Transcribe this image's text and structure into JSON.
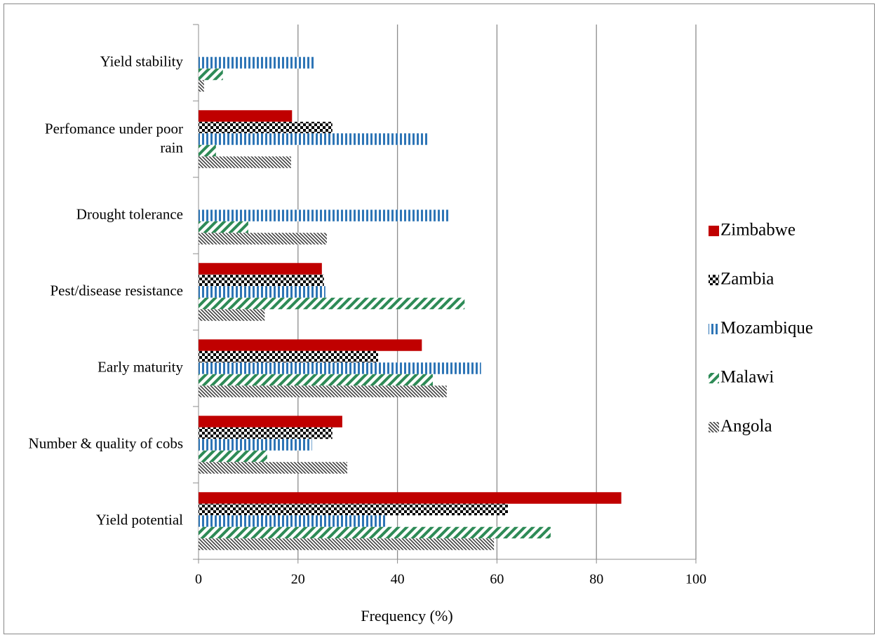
{
  "chart_data": {
    "type": "hbar",
    "x_label": "Frequency (%)",
    "categories": [
      "Yield stability",
      "Perfomance under poor rain",
      "Drought tolerance",
      "Pest/disease resistance",
      "Early maturity",
      "Number & quality of cobs",
      "Yield potential"
    ],
    "series": [
      {
        "name": "Zimbabwe",
        "color": "#c00000",
        "pattern": "solid",
        "values": [
          null,
          18.8,
          null,
          24.8,
          44.9,
          28.9,
          85.0
        ]
      },
      {
        "name": "Zambia",
        "color": "#000000",
        "pattern": "checker",
        "values": [
          null,
          26.9,
          null,
          25.2,
          36.1,
          26.9,
          62.2
        ]
      },
      {
        "name": "Mozambique",
        "color": "#2e75b6",
        "pattern": "vertical",
        "values": [
          23.3,
          46.1,
          50.6,
          25.5,
          56.8,
          22.8,
          37.7
        ]
      },
      {
        "name": "Malawi",
        "color": "#2e8b57",
        "pattern": "diagonal",
        "values": [
          4.9,
          3.5,
          10.0,
          53.5,
          47.1,
          13.8,
          70.8
        ]
      },
      {
        "name": "Angola",
        "color": "#404040",
        "pattern": "dense-diagonal",
        "values": [
          1.1,
          18.6,
          25.8,
          13.3,
          49.9,
          29.9,
          59.4
        ]
      }
    ],
    "xlim": [
      0,
      100
    ],
    "xticks": [
      0,
      20,
      40,
      60,
      80,
      100
    ],
    "grid": true,
    "legend": "right"
  }
}
